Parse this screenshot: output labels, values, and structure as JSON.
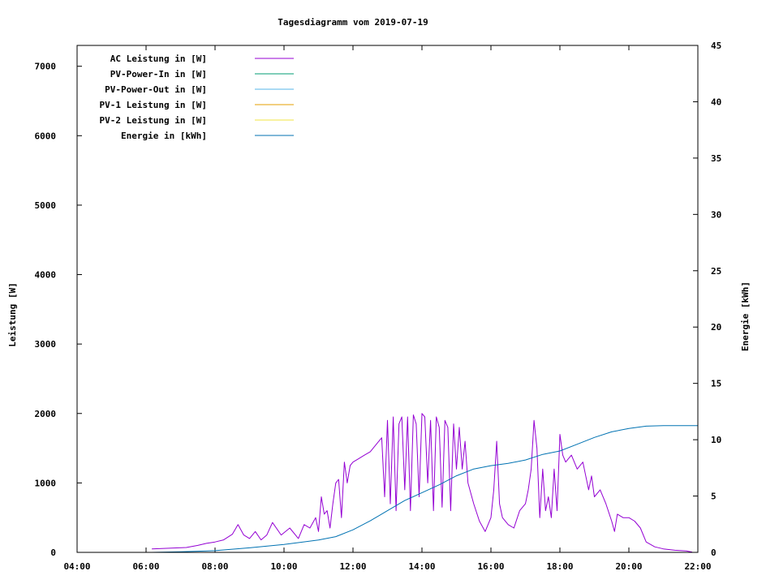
{
  "chart_data": {
    "type": "line",
    "title": "Tagesdiagramm vom 2019-07-19",
    "xlabel": "",
    "ylabel": "Leistung [W]",
    "y2label": "Energie [kWh]",
    "x_ticks": [
      "04:00",
      "06:00",
      "08:00",
      "10:00",
      "12:00",
      "14:00",
      "16:00",
      "18:00",
      "20:00",
      "22:00"
    ],
    "xlim": [
      "04:00",
      "22:00"
    ],
    "ylim": [
      0,
      7300
    ],
    "y_ticks": [
      0,
      1000,
      2000,
      3000,
      4000,
      5000,
      6000,
      7000
    ],
    "y2lim": [
      0,
      45
    ],
    "y2_ticks": [
      0,
      5,
      10,
      15,
      20,
      25,
      30,
      35,
      40,
      45
    ],
    "grid": false,
    "legend_position": "top-left",
    "series": [
      {
        "name": "AC Leistung in [W]",
        "axis": "left",
        "color": "#9400d3",
        "points": [
          [
            "06:10",
            50
          ],
          [
            "06:40",
            60
          ],
          [
            "07:10",
            70
          ],
          [
            "07:30",
            100
          ],
          [
            "07:45",
            130
          ],
          [
            "08:00",
            150
          ],
          [
            "08:15",
            180
          ],
          [
            "08:30",
            260
          ],
          [
            "08:40",
            400
          ],
          [
            "08:50",
            250
          ],
          [
            "09:00",
            200
          ],
          [
            "09:10",
            300
          ],
          [
            "09:20",
            180
          ],
          [
            "09:30",
            250
          ],
          [
            "09:40",
            430
          ],
          [
            "09:55",
            250
          ],
          [
            "10:10",
            350
          ],
          [
            "10:25",
            200
          ],
          [
            "10:35",
            400
          ],
          [
            "10:45",
            350
          ],
          [
            "10:55",
            500
          ],
          [
            "11:00",
            300
          ],
          [
            "11:05",
            800
          ],
          [
            "11:10",
            550
          ],
          [
            "11:15",
            600
          ],
          [
            "11:20",
            350
          ],
          [
            "11:25",
            700
          ],
          [
            "11:30",
            1000
          ],
          [
            "11:35",
            1050
          ],
          [
            "11:40",
            500
          ],
          [
            "11:45",
            1300
          ],
          [
            "11:50",
            1000
          ],
          [
            "11:55",
            1250
          ],
          [
            "12:00",
            1300
          ],
          [
            "12:10",
            1350
          ],
          [
            "12:20",
            1400
          ],
          [
            "12:30",
            1450
          ],
          [
            "12:40",
            1550
          ],
          [
            "12:50",
            1650
          ],
          [
            "12:55",
            800
          ],
          [
            "13:00",
            1900
          ],
          [
            "13:05",
            700
          ],
          [
            "13:10",
            1950
          ],
          [
            "13:15",
            600
          ],
          [
            "13:20",
            1850
          ],
          [
            "13:25",
            1950
          ],
          [
            "13:30",
            900
          ],
          [
            "13:35",
            1950
          ],
          [
            "13:40",
            600
          ],
          [
            "13:45",
            1980
          ],
          [
            "13:50",
            1850
          ],
          [
            "13:55",
            800
          ],
          [
            "14:00",
            2000
          ],
          [
            "14:05",
            1950
          ],
          [
            "14:10",
            1000
          ],
          [
            "14:15",
            1900
          ],
          [
            "14:20",
            600
          ],
          [
            "14:25",
            1950
          ],
          [
            "14:30",
            1800
          ],
          [
            "14:35",
            650
          ],
          [
            "14:40",
            1900
          ],
          [
            "14:45",
            1800
          ],
          [
            "14:50",
            600
          ],
          [
            "14:55",
            1850
          ],
          [
            "15:00",
            1200
          ],
          [
            "15:05",
            1800
          ],
          [
            "15:10",
            1200
          ],
          [
            "15:15",
            1600
          ],
          [
            "15:20",
            1000
          ],
          [
            "15:30",
            700
          ],
          [
            "15:40",
            450
          ],
          [
            "15:50",
            300
          ],
          [
            "16:00",
            500
          ],
          [
            "16:05",
            900
          ],
          [
            "16:10",
            1600
          ],
          [
            "16:15",
            700
          ],
          [
            "16:20",
            500
          ],
          [
            "16:30",
            400
          ],
          [
            "16:40",
            350
          ],
          [
            "16:50",
            600
          ],
          [
            "17:00",
            700
          ],
          [
            "17:05",
            900
          ],
          [
            "17:10",
            1200
          ],
          [
            "17:15",
            1900
          ],
          [
            "17:20",
            1500
          ],
          [
            "17:25",
            500
          ],
          [
            "17:30",
            1200
          ],
          [
            "17:35",
            600
          ],
          [
            "17:40",
            800
          ],
          [
            "17:45",
            500
          ],
          [
            "17:50",
            1200
          ],
          [
            "17:55",
            600
          ],
          [
            "18:00",
            1700
          ],
          [
            "18:05",
            1400
          ],
          [
            "18:10",
            1300
          ],
          [
            "18:20",
            1400
          ],
          [
            "18:30",
            1200
          ],
          [
            "18:40",
            1300
          ],
          [
            "18:50",
            900
          ],
          [
            "18:55",
            1100
          ],
          [
            "19:00",
            800
          ],
          [
            "19:10",
            900
          ],
          [
            "19:20",
            700
          ],
          [
            "19:30",
            450
          ],
          [
            "19:35",
            300
          ],
          [
            "19:40",
            550
          ],
          [
            "19:50",
            500
          ],
          [
            "20:00",
            500
          ],
          [
            "20:10",
            450
          ],
          [
            "20:20",
            350
          ],
          [
            "20:30",
            150
          ],
          [
            "20:45",
            80
          ],
          [
            "21:00",
            50
          ],
          [
            "21:20",
            30
          ],
          [
            "21:40",
            20
          ],
          [
            "21:50",
            5
          ]
        ]
      },
      {
        "name": "PV-Power-In in [W]",
        "axis": "left",
        "color": "#009e73",
        "points": []
      },
      {
        "name": "PV-Power-Out in [W]",
        "axis": "left",
        "color": "#56b4e9",
        "points": []
      },
      {
        "name": "PV-1 Leistung in [W]",
        "axis": "left",
        "color": "#e69f00",
        "points": []
      },
      {
        "name": "PV-2 Leistung in [W]",
        "axis": "left",
        "color": "#f0e442",
        "points": []
      },
      {
        "name": "Energie in [kWh]",
        "axis": "right",
        "color": "#0072b2",
        "points": [
          [
            "06:10",
            0
          ],
          [
            "07:00",
            0.05
          ],
          [
            "08:00",
            0.15
          ],
          [
            "09:00",
            0.4
          ],
          [
            "10:00",
            0.7
          ],
          [
            "11:00",
            1.1
          ],
          [
            "11:30",
            1.4
          ],
          [
            "12:00",
            2.0
          ],
          [
            "12:30",
            2.8
          ],
          [
            "13:00",
            3.7
          ],
          [
            "13:30",
            4.6
          ],
          [
            "14:00",
            5.3
          ],
          [
            "14:30",
            6.0
          ],
          [
            "15:00",
            6.8
          ],
          [
            "15:30",
            7.4
          ],
          [
            "16:00",
            7.7
          ],
          [
            "16:30",
            7.9
          ],
          [
            "17:00",
            8.2
          ],
          [
            "17:30",
            8.7
          ],
          [
            "18:00",
            9.0
          ],
          [
            "18:30",
            9.6
          ],
          [
            "19:00",
            10.2
          ],
          [
            "19:30",
            10.7
          ],
          [
            "20:00",
            11.0
          ],
          [
            "20:30",
            11.2
          ],
          [
            "21:00",
            11.25
          ],
          [
            "22:00",
            11.25
          ]
        ]
      }
    ]
  }
}
